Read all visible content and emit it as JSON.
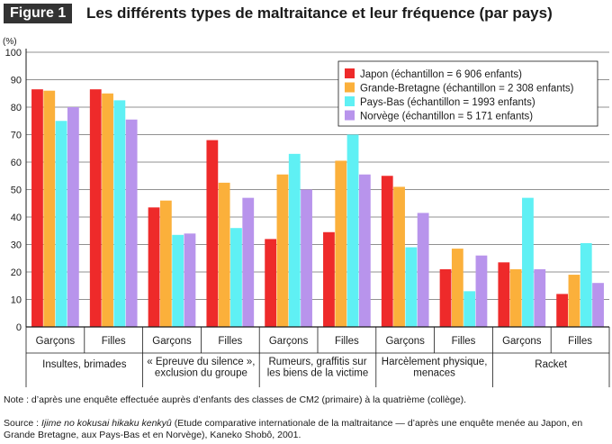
{
  "figure": {
    "label": "Figure 1",
    "title": "Les différents types de maltraitance et leur fréquence (par pays)"
  },
  "chart_data": {
    "type": "bar",
    "ylabel": "(%)",
    "ylim": [
      0,
      100
    ],
    "yticks": [
      0,
      10,
      20,
      30,
      40,
      50,
      60,
      70,
      80,
      90,
      100
    ],
    "grid": true,
    "legend_position": "top-right",
    "categories": [
      {
        "group": "Insultes, brimades",
        "sub": "Garçons"
      },
      {
        "group": "Insultes, brimades",
        "sub": "Filles"
      },
      {
        "group": "« Epreuve du silence », exclusion du groupe",
        "sub": "Garçons"
      },
      {
        "group": "« Epreuve du silence », exclusion du groupe",
        "sub": "Filles"
      },
      {
        "group": "Rumeurs, graffitis sur les biens de la victime",
        "sub": "Garçons"
      },
      {
        "group": "Rumeurs, graffitis sur les biens de la victime",
        "sub": "Filles"
      },
      {
        "group": "Harcèlement physique, menaces",
        "sub": "Garçons"
      },
      {
        "group": "Harcèlement physique, menaces",
        "sub": "Filles"
      },
      {
        "group": "Racket",
        "sub": "Garçons"
      },
      {
        "group": "Racket",
        "sub": "Filles"
      }
    ],
    "groups": [
      {
        "lines": [
          "Insultes, brimades"
        ]
      },
      {
        "lines": [
          "« Epreuve du silence »,",
          "exclusion du groupe"
        ]
      },
      {
        "lines": [
          "Rumeurs, graffitis sur",
          "les biens de la victime"
        ]
      },
      {
        "lines": [
          "Harcèlement physique,",
          "menaces"
        ]
      },
      {
        "lines": [
          "Racket"
        ]
      }
    ],
    "series": [
      {
        "name": "Japon (échantillon = 6 906 enfants)",
        "color": "#ee2a2a",
        "values": [
          86.5,
          86.5,
          43.5,
          68,
          32,
          34.5,
          55,
          21,
          23.5,
          12
        ]
      },
      {
        "name": "Grande-Bretagne (échantillon = 2 308 enfants)",
        "color": "#fbb03b",
        "values": [
          86,
          85,
          46,
          52.5,
          55.5,
          60.5,
          51,
          28.5,
          21,
          19
        ]
      },
      {
        "name": "Pays-Bas (échantillon = 1993 enfants)",
        "color": "#5ff0f4",
        "values": [
          75,
          82.5,
          33.5,
          36,
          63,
          70,
          29,
          13,
          47,
          30.5
        ]
      },
      {
        "name": "Norvège (échantillon = 5 171 enfants)",
        "color": "#b894ec",
        "values": [
          80,
          75.5,
          34,
          47,
          50,
          55.5,
          41.5,
          26,
          21,
          16
        ]
      }
    ]
  },
  "notes": {
    "note": "Note : d’après une enquête effectuée auprès d’enfants des classes de CM2 (primaire) à la quatrième (collège).",
    "source_prefix": "Source : ",
    "source_title": "Ijime no kokusai hikaku kenkyû",
    "source_rest": " (Etude comparative internationale de la maltraitance — d’après une enquête menée au Japon, en Grande Bretagne, aux Pays-Bas et en Norvège), Kaneko Shobô, 2001."
  }
}
